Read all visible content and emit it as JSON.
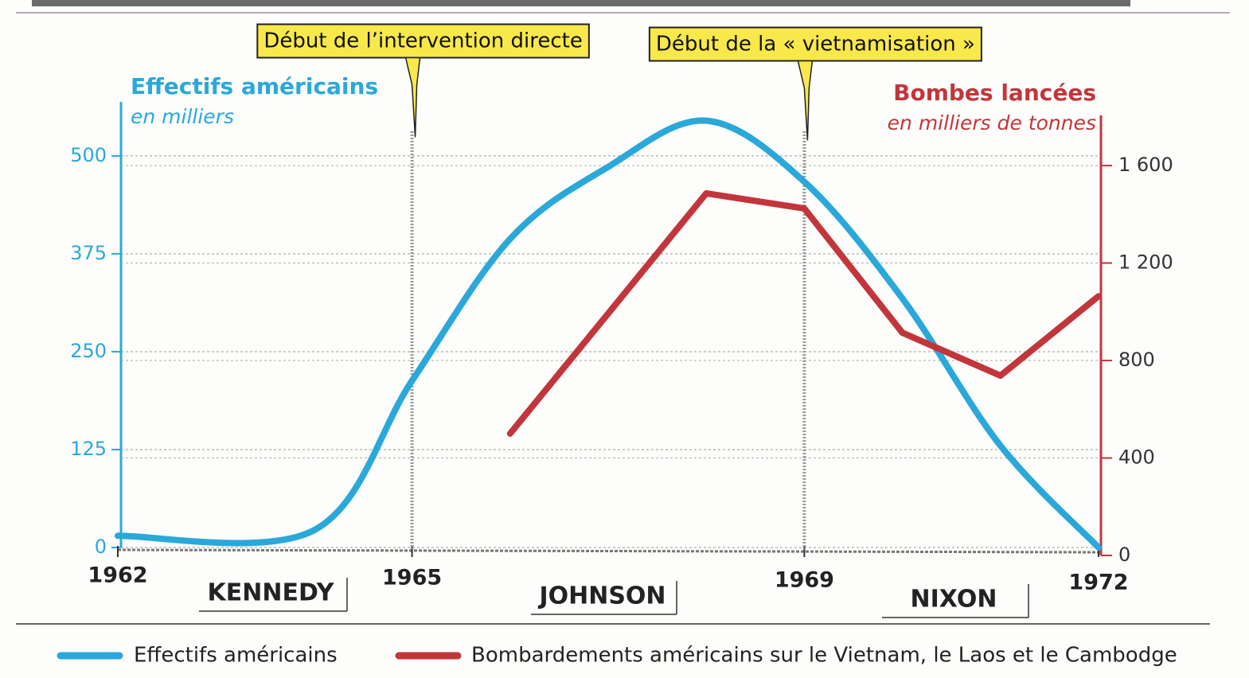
{
  "chart_data": {
    "type": "line",
    "xlim": [
      1962,
      1972
    ],
    "xticks": [
      1962,
      1965,
      1969,
      1972
    ],
    "ylim": [
      0,
      567
    ],
    "yticks": [
      0,
      125,
      250,
      375,
      500
    ],
    "y2lim": [
      0,
      1806
    ],
    "y2ticks": [
      0,
      400,
      800,
      {
        "value": 1200,
        "label": "1 200"
      },
      {
        "value": 1600,
        "label": "1 600"
      }
    ],
    "y_title": "Effectifs américains",
    "y_subtitle": "en milliers",
    "y2_title": "Bombes lancées",
    "y2_subtitle": "en milliers de tonnes",
    "grid": true,
    "series": [
      {
        "name": "Effectifs américains",
        "color": "#2aa8da",
        "x": [
          1962,
          1964,
          1965,
          1966,
          1967,
          1968,
          1969,
          1970,
          1971,
          1972
        ],
        "values": [
          15,
          22,
          213,
          394,
          486,
          545,
          467,
          318,
          130,
          0
        ]
      },
      {
        "name": "Bombardements américains sur le Vietnam, le Laos et le Cambodge",
        "color": "#c2363b",
        "axis": "y2",
        "x": [
          1966,
          1968,
          1969,
          1970,
          1971,
          1972
        ],
        "values": [
          500,
          1486,
          1424,
          914,
          738,
          1064
        ]
      }
    ],
    "annotations": [
      {
        "text": "Début de l’intervention directe",
        "x": 1965
      },
      {
        "text": "Début de la « vietnamisation »",
        "x": 1969
      }
    ],
    "periods": [
      "KENNEDY",
      "JOHNSON",
      "NIXON"
    ]
  }
}
